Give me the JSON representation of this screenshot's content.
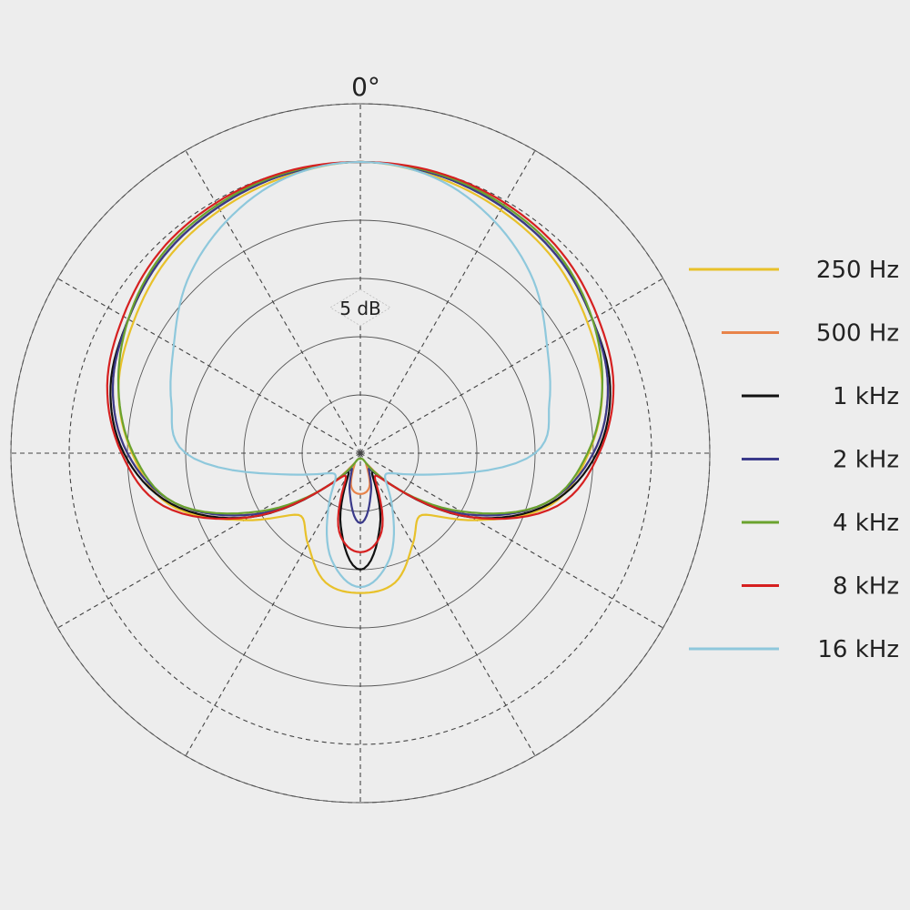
{
  "chart_data": {
    "type": "polar",
    "angle_label": "0°",
    "ring_label": "5 dB",
    "rings_db": [
      5,
      10,
      15,
      20,
      25,
      30
    ],
    "spokes_deg": [
      0,
      30,
      60,
      90,
      120,
      150,
      180,
      210,
      240,
      270,
      300,
      330
    ],
    "grid": true,
    "legend_position": "right",
    "theta_deg": [
      0,
      15,
      30,
      45,
      60,
      75,
      90,
      105,
      120,
      135,
      150,
      165,
      180
    ],
    "series": [
      {
        "name": "250 Hz",
        "color": "#e8c12a",
        "values_db": [
          25,
          24.6,
          24.1,
          23.5,
          22.5,
          21.5,
          19.6,
          17,
          11.5,
          7.5,
          9,
          11.5,
          12
        ]
      },
      {
        "name": "500 Hz",
        "color": "#e8834a",
        "values_db": [
          25,
          24.8,
          24.4,
          23.9,
          23,
          22,
          20,
          16.5,
          10.5,
          4,
          1,
          3,
          3.5
        ]
      },
      {
        "name": "1 kHz",
        "color": "#111111",
        "values_db": [
          25,
          24.8,
          24.4,
          23.9,
          23,
          22.2,
          20.3,
          16.8,
          11,
          4,
          2,
          6.5,
          10
        ]
      },
      {
        "name": "2 kHz",
        "color": "#3a3a8a",
        "values_db": [
          25,
          24.8,
          24.4,
          23.9,
          23,
          22,
          20,
          16.5,
          10.5,
          4,
          1.5,
          3.5,
          6
        ]
      },
      {
        "name": "4 kHz",
        "color": "#6aa22e",
        "values_db": [
          25,
          24.9,
          24.6,
          24.1,
          23,
          21.5,
          19.5,
          16.5,
          10,
          4,
          1,
          0.5,
          0.5
        ]
      },
      {
        "name": "8 kHz",
        "color": "#d62020",
        "values_db": [
          25,
          25,
          24.8,
          24.4,
          23.5,
          22.5,
          20.5,
          17.5,
          11,
          4,
          2.5,
          7,
          8.5
        ]
      },
      {
        "name": "16 kHz",
        "color": "#8ec8dc",
        "values_db": [
          25,
          24.5,
          23,
          21,
          18.5,
          16.8,
          15,
          7,
          3.5,
          3,
          5.5,
          9.5,
          11.5
        ]
      }
    ]
  }
}
